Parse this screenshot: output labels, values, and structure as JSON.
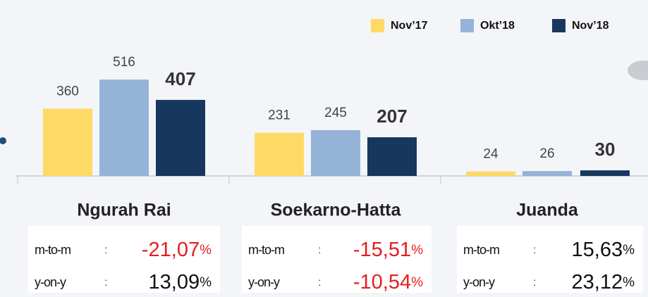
{
  "chart_data": {
    "type": "bar",
    "categories": [
      "Ngurah Rai",
      "Soekarno-Hatta",
      "Juanda"
    ],
    "series": [
      {
        "name": "Nov’17",
        "color": "#ffd966",
        "values": [
          360,
          231,
          24
        ]
      },
      {
        "name": "Okt’18",
        "color": "#95b3d7",
        "values": [
          516,
          245,
          26
        ]
      },
      {
        "name": "Nov’18",
        "color": "#17375e",
        "values": [
          407,
          207,
          30
        ]
      }
    ],
    "legend": "top-right",
    "stats": [
      [
        {
          "label": "m-to-m",
          "value": "-21,07",
          "unit": "%"
        },
        {
          "label": "y-on-y",
          "value": "13,09",
          "unit": "%"
        }
      ],
      [
        {
          "label": "m-to-m",
          "value": "-15,51",
          "unit": "%"
        },
        {
          "label": "y-on-y",
          "value": "-10,54",
          "unit": "%"
        }
      ],
      [
        {
          "label": "m-to-m",
          "value": "15,63",
          "unit": "%"
        },
        {
          "label": "y-on-y",
          "value": "23,12",
          "unit": "%"
        }
      ]
    ]
  }
}
